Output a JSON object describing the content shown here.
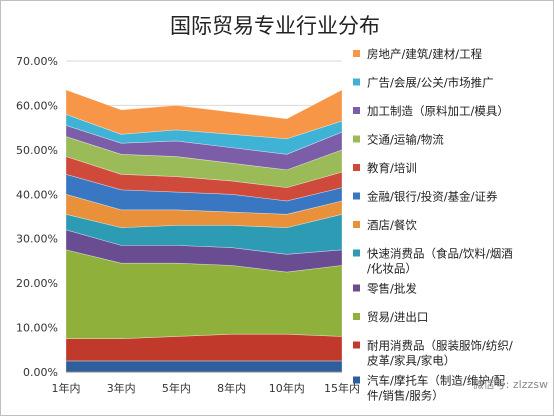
{
  "chart_data": {
    "type": "area",
    "stacked": true,
    "title": "国际贸易专业行业分布",
    "categories": [
      "1年内",
      "3年内",
      "5年内",
      "8年内",
      "10年内",
      "15年内"
    ],
    "ylim": [
      0,
      0.7
    ],
    "y_ticks": [
      "0.00%",
      "10.00%",
      "20.00%",
      "30.00%",
      "40.00%",
      "50.00%",
      "60.00%",
      "70.00%"
    ],
    "grid": true,
    "legend_position": "right",
    "series": [
      {
        "name": "汽车/摩托车(制造/维护/配件/销售/服务)",
        "color": "#2e5f9c",
        "values": [
          0.025,
          0.025,
          0.025,
          0.025,
          0.025,
          0.025
        ]
      },
      {
        "name": "耐用消费品(服装服饰/纺织/皮革/家具/家电)",
        "color": "#c0392b",
        "values": [
          0.05,
          0.05,
          0.055,
          0.06,
          0.06,
          0.055
        ]
      },
      {
        "name": "贸易/进出口",
        "color": "#8fb13b",
        "values": [
          0.2,
          0.17,
          0.165,
          0.155,
          0.14,
          0.16
        ]
      },
      {
        "name": "零售/批发",
        "color": "#6a4c93",
        "values": [
          0.045,
          0.04,
          0.04,
          0.04,
          0.04,
          0.035
        ]
      },
      {
        "name": "快速消费品(食品/饮料/烟酒/化妆品)",
        "color": "#2e9bb5",
        "values": [
          0.035,
          0.04,
          0.045,
          0.05,
          0.06,
          0.08
        ]
      },
      {
        "name": "酒店/餐饮",
        "color": "#e8913a",
        "values": [
          0.045,
          0.04,
          0.035,
          0.03,
          0.03,
          0.03
        ]
      },
      {
        "name": "金融/银行/投资/基金/证券",
        "color": "#3a77c2",
        "values": [
          0.045,
          0.045,
          0.04,
          0.04,
          0.03,
          0.03
        ]
      },
      {
        "name": "教育/培训",
        "color": "#d04a3b",
        "values": [
          0.04,
          0.035,
          0.035,
          0.03,
          0.03,
          0.035
        ]
      },
      {
        "name": "交通/运输/物流",
        "color": "#9bbb59",
        "values": [
          0.045,
          0.045,
          0.045,
          0.04,
          0.04,
          0.05
        ]
      },
      {
        "name": "加工制造(原料加工/模具)",
        "color": "#7b5ea7",
        "values": [
          0.025,
          0.025,
          0.035,
          0.035,
          0.035,
          0.04
        ]
      },
      {
        "name": "广告/会展/公关/市场推广",
        "color": "#3fb3d5",
        "values": [
          0.025,
          0.02,
          0.025,
          0.03,
          0.035,
          0.025
        ]
      },
      {
        "name": "房地产/建筑/建材/工程",
        "color": "#f79646",
        "values": [
          0.055,
          0.055,
          0.055,
          0.05,
          0.045,
          0.07
        ]
      }
    ],
    "legend": [
      {
        "lines": [
          "房地产/建筑/建材/工程"
        ],
        "color": "#f79646"
      },
      {
        "lines": [
          "广告/会展/公关/市场推广"
        ],
        "color": "#3fb3d5"
      },
      {
        "lines": [
          "加工制造（原料加工/模具）"
        ],
        "color": "#7b5ea7"
      },
      {
        "lines": [
          "交通/运输/物流"
        ],
        "color": "#9bbb59"
      },
      {
        "lines": [
          "教育/培训"
        ],
        "color": "#d04a3b"
      },
      {
        "lines": [
          "金融/银行/投资/基金/证券"
        ],
        "color": "#3a77c2"
      },
      {
        "lines": [
          "酒店/餐饮"
        ],
        "color": "#e8913a"
      },
      {
        "lines": [
          "快速消费品（食品/饮料/烟酒",
          "/化妆品）"
        ],
        "color": "#2e9bb5"
      },
      {
        "lines": [
          "零售/批发"
        ],
        "color": "#6a4c93"
      },
      {
        "lines": [
          "贸易/进出口"
        ],
        "color": "#8fb13b"
      },
      {
        "lines": [
          "耐用消费品（服装服饰/纺织/",
          "皮革/家具/家电）"
        ],
        "color": "#c0392b"
      },
      {
        "lines": [
          "汽车/摩托车（制造/维护/配",
          "件/销售/服务）"
        ],
        "color": "#2e5f9c"
      }
    ]
  },
  "watermark": "微信号: zlzzsw"
}
